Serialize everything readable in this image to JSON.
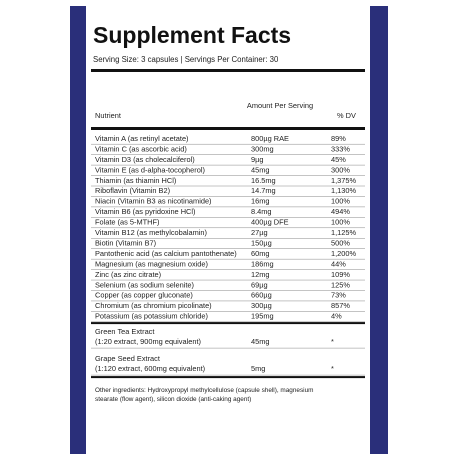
{
  "header": {
    "title": "Supplement Facts",
    "serving": "Serving Size: 3 capsules  |  Servings Per Container: 30"
  },
  "table": {
    "columns": [
      "Nutrient",
      "Amount Per Serving",
      "% DV"
    ],
    "rows": [
      [
        "Vitamin A (as retinyl acetate)",
        "800µg RAE",
        "89%"
      ],
      [
        "Vitamin C (as ascorbic acid)",
        "300mg",
        "333%"
      ],
      [
        "Vitamin D3 (as cholecalciferol)",
        "9µg",
        "45%"
      ],
      [
        "Vitamin E (as d-alpha-tocopherol)",
        "45mg",
        "300%"
      ],
      [
        "Thiamin (as thiamin HCl)",
        "16.5mg",
        "1,375%"
      ],
      [
        "Riboflavin (Vitamin B2)",
        "14.7mg",
        "1,130%"
      ],
      [
        "Niacin (Vitamin B3 as nicotinamide)",
        "16mg",
        "100%"
      ],
      [
        "Vitamin B6 (as pyridoxine HCl)",
        "8.4mg",
        "494%"
      ],
      [
        "Folate (as 5-MTHF)",
        "400µg DFE",
        "100%"
      ],
      [
        "Vitamin B12 (as methylcobalamin)",
        "27µg",
        "1,125%"
      ],
      [
        "Biotin (Vitamin B7)",
        "150µg",
        "500%"
      ],
      [
        "Pantothenic acid (as calcium pantothenate)",
        "60mg",
        "1,200%"
      ],
      [
        "Magnesium (as magnesium oxide)",
        "186mg",
        "44%"
      ],
      [
        "Zinc (as zinc citrate)",
        "12mg",
        "109%"
      ],
      [
        "Selenium (as sodium selenite)",
        "69µg",
        "125%"
      ],
      [
        "Copper (as copper gluconate)",
        "660µg",
        "73%"
      ],
      [
        "Chromium (as chromium picolinate)",
        "300µg",
        "857%"
      ],
      [
        "Potassium (as potassium chloride)",
        "195mg",
        "4%"
      ]
    ],
    "extracts": [
      [
        "Green Tea Extract",
        "(1:20 extract, 900mg equivalent)",
        "45mg",
        "*"
      ],
      [
        "Grape Seed Extract",
        "(1:120 extract, 600mg equivalent)",
        "5mg",
        "*"
      ]
    ]
  },
  "footer": {
    "other_ingredients": [
      "Other ingredients:  Hydroxypropyl methylcellulose (capsule shell), magnesium",
      "stearate (flow agent), silicon dioxide (anti-caking agent)"
    ]
  }
}
